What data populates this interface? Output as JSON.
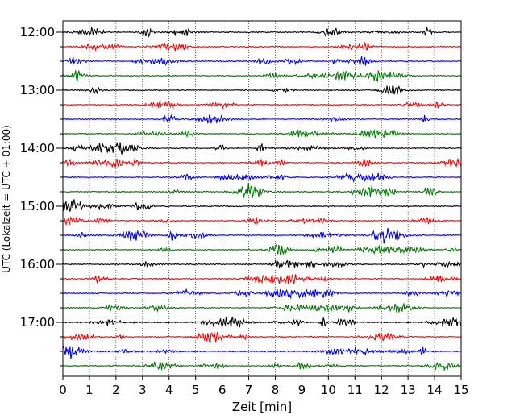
{
  "chart_data": {
    "type": "line",
    "title": "",
    "xlabel": "Zeit  [min]",
    "ylabel": "UTC (Lokalzeit = UTC + 01:00)",
    "xlim": [
      0,
      15
    ],
    "x_ticks": [
      0,
      1,
      2,
      3,
      4,
      5,
      6,
      7,
      8,
      9,
      10,
      11,
      12,
      13,
      14,
      15
    ],
    "grid": "vertical dotted at each minute",
    "y_tick_labels": [
      "12:00",
      "13:00",
      "14:00",
      "15:00",
      "16:00",
      "17:00"
    ],
    "trace_start_times": [
      "12:00",
      "12:15",
      "12:30",
      "12:45",
      "13:00",
      "13:15",
      "13:30",
      "13:45",
      "14:00",
      "14:15",
      "14:30",
      "14:45",
      "15:00",
      "15:15",
      "15:30",
      "15:45",
      "16:00",
      "16:15",
      "16:30",
      "16:45",
      "17:00",
      "17:15",
      "17:30",
      "17:45"
    ],
    "trace_minutes_each": 15,
    "trace_colors": [
      "#000000",
      "#ff0000",
      "#0000ff",
      "#007a00"
    ],
    "seed": 7
  }
}
